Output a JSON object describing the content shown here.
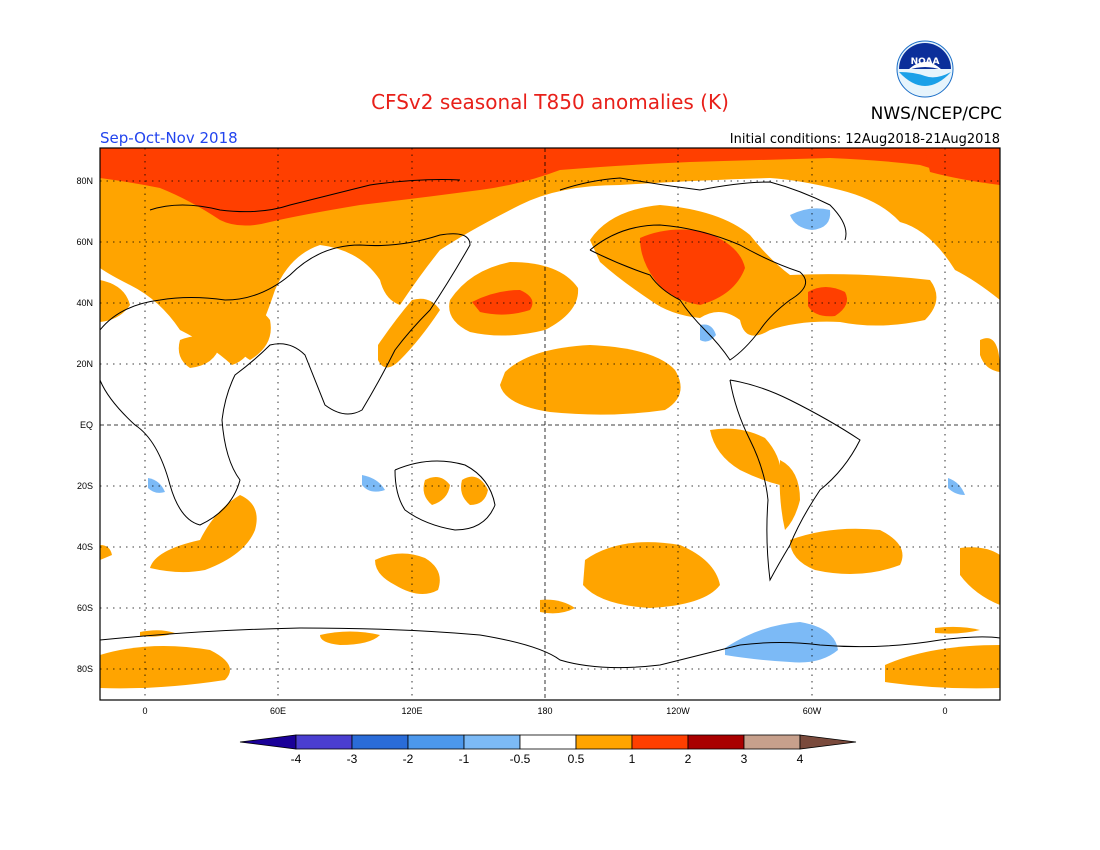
{
  "header": {
    "title": "CFSv2 seasonal T850 anomalies (K)",
    "agency": "NWS/NCEP/CPC",
    "logo_text": "NOAA",
    "season": "Sep-Oct-Nov 2018",
    "initial_conditions": "Initial conditions: 12Aug2018-21Aug2018"
  },
  "map": {
    "lat_labels": [
      "80N",
      "60N",
      "40N",
      "20N",
      "EQ",
      "20S",
      "40S",
      "60S",
      "80S"
    ],
    "lon_labels": [
      "0",
      "60E",
      "120E",
      "180",
      "120W",
      "60W",
      "0"
    ],
    "anomaly_regions": [
      {
        "name": "arctic-warm",
        "level": "1 to 2 K"
      },
      {
        "name": "north-america-warm-core",
        "level": "1 to 2 K"
      },
      {
        "name": "north-pacific-warm-core",
        "level": "1 to 2 K"
      },
      {
        "name": "north-atlantic-warm-core",
        "level": "1 to 2 K"
      },
      {
        "name": "eastern-pacific-warm",
        "level": "0.5 to 1 K"
      },
      {
        "name": "southern-ocean-warm",
        "level": "0.5 to 1 K"
      },
      {
        "name": "antarctic-peninsula-cool",
        "level": "-1 to -0.5 K"
      }
    ]
  },
  "colorbar": {
    "tick_labels": [
      "-4",
      "-3",
      "-2",
      "-1",
      "-0.5",
      "0.5",
      "1",
      "2",
      "3",
      "4"
    ],
    "colors": [
      "#1a0098",
      "#4a3ed0",
      "#2a6cd8",
      "#4c98ec",
      "#7cbaf6",
      "#ffffff",
      "#ffa400",
      "#ff3f00",
      "#a90000",
      "#c7a08c",
      "#7a4a3c"
    ]
  }
}
